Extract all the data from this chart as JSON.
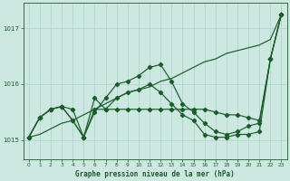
{
  "title": "Graphe pression niveau de la mer (hPa)",
  "bg_color": "#cce8e0",
  "line_color": "#1a5c2a",
  "grid_color": "#aad4c8",
  "ylim": [
    1014.65,
    1017.45
  ],
  "yticks": [
    1015,
    1016,
    1017
  ],
  "xlim": [
    -0.5,
    23.5
  ],
  "xticks": [
    0,
    1,
    2,
    3,
    4,
    5,
    6,
    7,
    8,
    9,
    10,
    11,
    12,
    13,
    14,
    15,
    16,
    17,
    18,
    19,
    20,
    21,
    22,
    23
  ],
  "x": [
    0,
    1,
    2,
    3,
    4,
    5,
    6,
    7,
    8,
    9,
    10,
    11,
    12,
    13,
    14,
    15,
    16,
    17,
    18,
    19,
    20,
    21,
    22,
    23
  ],
  "series_straight": [
    1015.05,
    1015.1,
    1015.2,
    1015.3,
    1015.35,
    1015.45,
    1015.55,
    1015.65,
    1015.75,
    1015.85,
    1015.9,
    1015.95,
    1016.05,
    1016.1,
    1016.2,
    1016.3,
    1016.4,
    1016.45,
    1016.55,
    1016.6,
    1016.65,
    1016.7,
    1016.8,
    1017.25
  ],
  "series_main": [
    1015.05,
    1015.4,
    1015.55,
    1015.6,
    1015.35,
    1015.05,
    1015.5,
    1015.75,
    1016.0,
    1016.05,
    1016.15,
    1016.3,
    1016.35,
    1016.05,
    1015.65,
    1015.5,
    1015.3,
    1015.15,
    1015.1,
    1015.15,
    1015.25,
    1015.3,
    1016.45,
    1017.25
  ],
  "series_flat": [
    1015.05,
    1015.4,
    1015.55,
    1015.6,
    1015.55,
    1015.05,
    1015.55,
    1015.55,
    1015.55,
    1015.55,
    1015.55,
    1015.55,
    1015.55,
    1015.55,
    1015.55,
    1015.55,
    1015.55,
    1015.5,
    1015.45,
    1015.45,
    1015.4,
    1015.35,
    1016.45,
    1017.25
  ],
  "series_low": [
    1015.05,
    1015.4,
    1015.55,
    1015.6,
    1015.35,
    1015.05,
    1015.75,
    1015.55,
    1015.75,
    1015.85,
    1015.9,
    1016.0,
    1015.85,
    1015.65,
    1015.45,
    1015.35,
    1015.1,
    1015.05,
    1015.05,
    1015.1,
    1015.1,
    1015.15,
    1016.45,
    1017.25
  ]
}
